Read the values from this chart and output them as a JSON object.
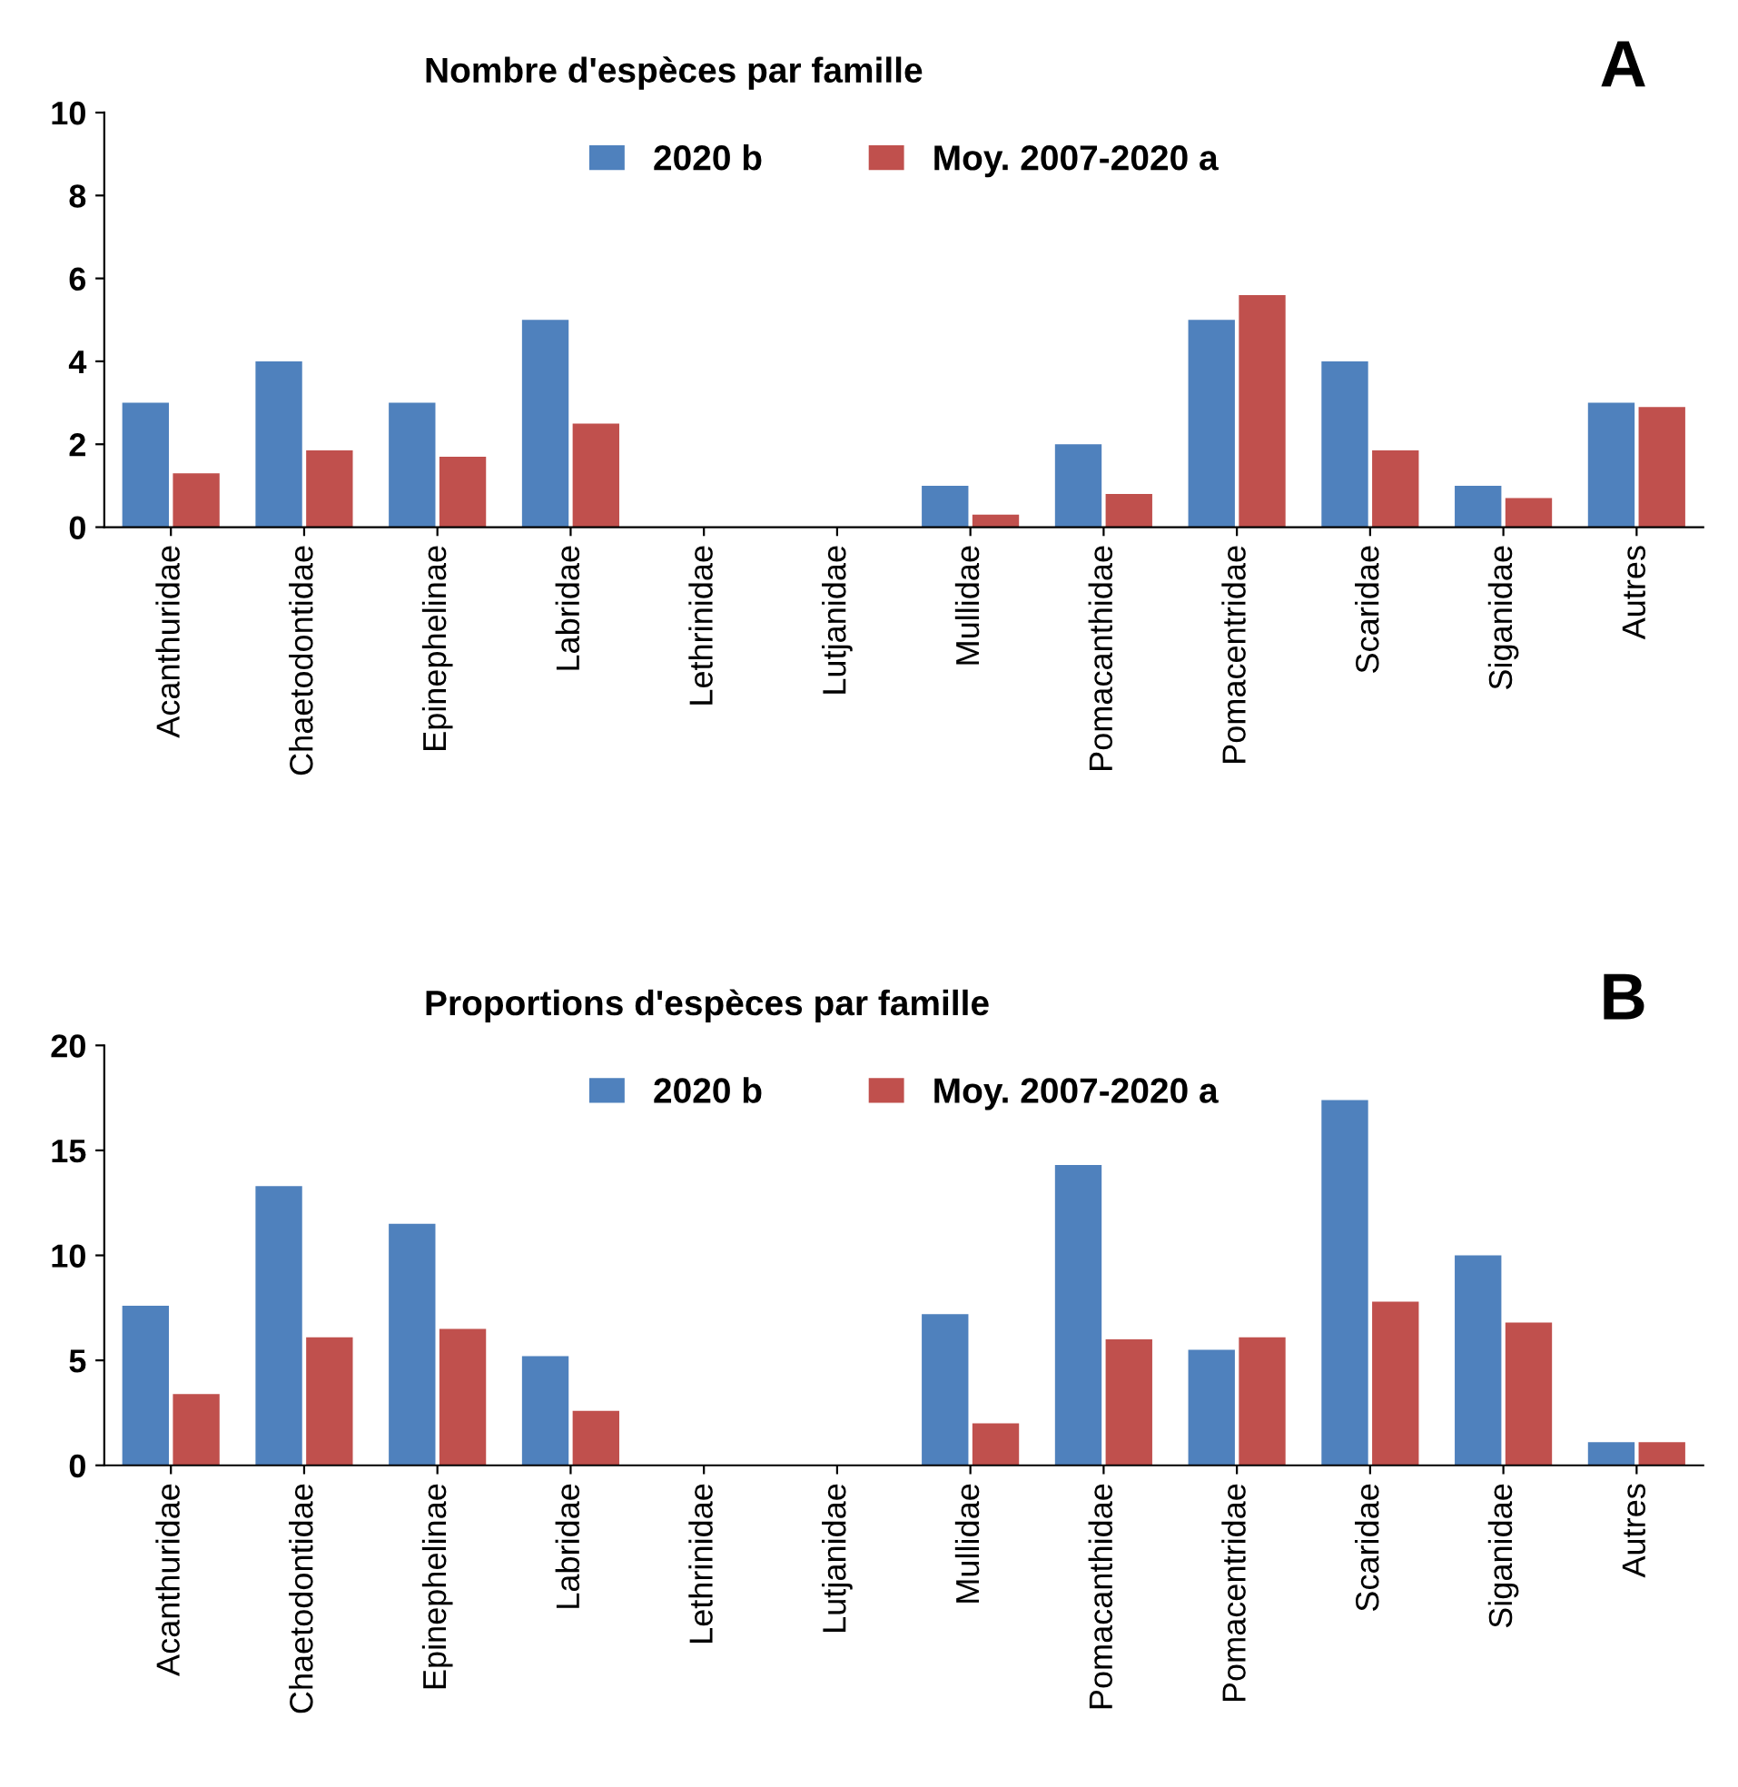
{
  "chart_data": [
    {
      "type": "bar",
      "title": "Nombre d'espèces par famille",
      "annotations": [
        "A"
      ],
      "categories": [
        "Acanthuridae",
        "Chaetodontidae",
        "Epinephelinae",
        "Labridae",
        "Lethrinidae",
        "Lutjanidae",
        "Mullidae",
        "Pomacanthidae",
        "Pomacentridae",
        "Scaridae",
        "Siganidae",
        "Autres"
      ],
      "series": [
        {
          "name": "2020 b",
          "color": "#4f81bd",
          "values": [
            3,
            4,
            3,
            5,
            0,
            0,
            1,
            2,
            5,
            4,
            1,
            3
          ]
        },
        {
          "name": "Moy. 2007-2020 a",
          "color": "#c0504d",
          "values": [
            1.3,
            1.85,
            1.7,
            2.5,
            0,
            0,
            0.3,
            0.8,
            5.6,
            1.85,
            0.7,
            2.9
          ]
        }
      ],
      "ylim": [
        0,
        10
      ],
      "yticks": [
        0,
        2,
        4,
        6,
        8,
        10
      ],
      "grid": false,
      "legend": "top"
    },
    {
      "type": "bar",
      "title": "Proportions d'espèces par famille",
      "annotations": [
        "B"
      ],
      "categories": [
        "Acanthuridae",
        "Chaetodontidae",
        "Epinephelinae",
        "Labridae",
        "Lethrinidae",
        "Lutjanidae",
        "Mullidae",
        "Pomacanthidae",
        "Pomacentridae",
        "Scaridae",
        "Siganidae",
        "Autres"
      ],
      "series": [
        {
          "name": "2020 b",
          "color": "#4f81bd",
          "values": [
            7.6,
            13.3,
            11.5,
            5.2,
            0,
            0,
            7.2,
            14.3,
            5.5,
            17.4,
            10.0,
            1.1
          ]
        },
        {
          "name": "Moy. 2007-2020 a",
          "color": "#c0504d",
          "values": [
            3.4,
            6.1,
            6.5,
            2.6,
            0,
            0,
            2.0,
            6.0,
            6.1,
            7.8,
            6.8,
            1.1
          ]
        }
      ],
      "ylim": [
        0,
        20
      ],
      "yticks": [
        0,
        5,
        10,
        15,
        20
      ],
      "grid": false,
      "legend": "top"
    }
  ]
}
